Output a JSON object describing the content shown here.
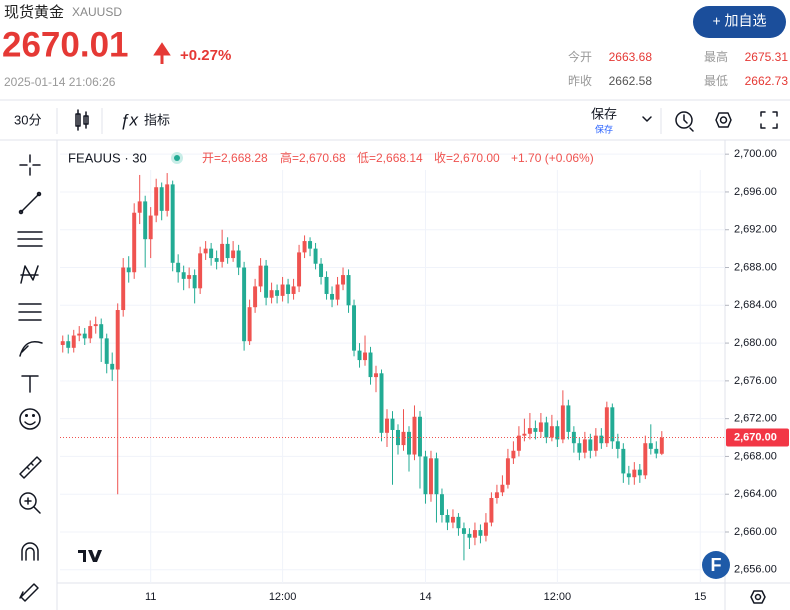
{
  "header": {
    "name": "现货黄金",
    "code": "XAUUSD",
    "price": "2670.01",
    "change": "+0.27%",
    "time": "2025-01-14 21:06:26",
    "button": "+ 加自选",
    "stats": [
      {
        "label": "今开",
        "value": "2663.68"
      },
      {
        "label": "最高",
        "value": "2675.31"
      },
      {
        "label": "昨收",
        "value": "2662.58"
      },
      {
        "label": "最低",
        "value": "2662.73"
      }
    ]
  },
  "toolbar": {
    "interval": "30分",
    "indicators": "指标",
    "save": "保存",
    "save_sub": "保存"
  },
  "legend": {
    "symbol": "FEAUUS · 30",
    "items": [
      "开=2,668.28",
      "高=2,670.68",
      "低=2,668.14",
      "收=2,670.00"
    ],
    "change": "+1.70 (+0.06%)"
  },
  "chart_data": {
    "type": "candlestick",
    "up_color": "#ef5350",
    "down_color": "#22ab94",
    "grid": true,
    "xlim": [
      -0.5,
      120.5
    ],
    "xticks": [
      {
        "value": 16,
        "label": "11"
      },
      {
        "value": 40,
        "label": "12:00"
      },
      {
        "value": 66,
        "label": "14"
      },
      {
        "value": 90,
        "label": "12:00"
      },
      {
        "value": 116,
        "label": "15"
      }
    ],
    "ylim": [
      2654.6,
      2701.5
    ],
    "yticks": [
      {
        "value": 2656,
        "label": "2,656.00"
      },
      {
        "value": 2660,
        "label": "2,660.00"
      },
      {
        "value": 2664,
        "label": "2,664.00"
      },
      {
        "value": 2668,
        "label": "2,668.00"
      },
      {
        "value": 2672,
        "label": "2,672.00"
      },
      {
        "value": 2676,
        "label": "2,676.00"
      },
      {
        "value": 2680,
        "label": "2,680.00"
      },
      {
        "value": 2684,
        "label": "2,684.00"
      },
      {
        "value": 2688,
        "label": "2,688.00"
      },
      {
        "value": 2692,
        "label": "2,692.00"
      },
      {
        "value": 2696,
        "label": "2,696.00"
      },
      {
        "value": 2700,
        "label": "2,700.00"
      }
    ],
    "price_line": {
      "value": 2670,
      "label": "2,670.00"
    },
    "open": [
      2679.8,
      2680.2,
      2679.5,
      2680.8,
      2681.0,
      2680.5,
      2681.8,
      2682.0,
      2680.5,
      2677.8,
      2677.2,
      2683.5,
      2688.0,
      2687.5,
      2693.8,
      2695.0,
      2691.0,
      2693.5,
      2696.5,
      2694.0,
      2696.8,
      2688.5,
      2687.5,
      2686.8,
      2687.2,
      2685.8,
      2689.5,
      2690.0,
      2689.0,
      2688.6,
      2690.5,
      2689.0,
      2689.8,
      2688.0,
      2680.2,
      2683.8,
      2686.0,
      2688.2,
      2684.8,
      2685.6,
      2685.0,
      2686.2,
      2685.2,
      2686.0,
      2689.6,
      2690.8,
      2690.0,
      2688.4,
      2687.0,
      2685.2,
      2684.6,
      2686.2,
      2687.2,
      2684.0,
      2679.2,
      2678.2,
      2679.0,
      2676.4,
      2676.8,
      2670.5,
      2672.0,
      2670.8,
      2669.2,
      2670.6,
      2668.2,
      2672.2,
      2668.0,
      2664.0,
      2667.8,
      2664.0,
      2661.8,
      2661.0,
      2661.6,
      2660.4,
      2659.8,
      2659.4,
      2660.2,
      2659.6,
      2661.0,
      2663.6,
      2664.2,
      2665.0,
      2667.8,
      2668.6,
      2670.2,
      2670.4,
      2671.0,
      2670.6,
      2671.6,
      2670.0,
      2671.2,
      2669.8,
      2673.4,
      2670.6,
      2669.4,
      2668.4,
      2669.8,
      2668.6,
      2670.2,
      2669.4,
      2673.2,
      2669.6,
      2668.8,
      2666.2,
      2665.8,
      2666.6,
      2666.0,
      2669.4,
      2668.8,
      2668.28
    ],
    "high": [
      2680.8,
      2680.9,
      2681.4,
      2681.8,
      2681.6,
      2682.4,
      2682.8,
      2682.6,
      2681.0,
      2679.0,
      2684.2,
      2689.0,
      2689.2,
      2694.8,
      2697.8,
      2695.6,
      2694.4,
      2697.4,
      2697.0,
      2698.0,
      2697.2,
      2689.4,
      2688.2,
      2688.0,
      2687.8,
      2690.2,
      2690.8,
      2690.6,
      2689.8,
      2692.0,
      2691.2,
      2690.8,
      2690.4,
      2688.6,
      2684.6,
      2686.8,
      2689.0,
      2688.8,
      2686.4,
      2686.2,
      2687.0,
      2686.8,
      2686.8,
      2690.4,
      2691.4,
      2691.2,
      2690.6,
      2689.0,
      2687.6,
      2686.0,
      2687.0,
      2688.0,
      2687.8,
      2684.6,
      2680.0,
      2680.8,
      2679.6,
      2677.6,
      2677.2,
      2673.0,
      2672.8,
      2671.4,
      2673.0,
      2671.2,
      2673.4,
      2672.8,
      2668.6,
      2668.6,
      2668.4,
      2664.6,
      2662.4,
      2662.4,
      2662.0,
      2661.0,
      2660.4,
      2661.0,
      2660.8,
      2662.0,
      2664.2,
      2665.0,
      2666.0,
      2668.8,
      2669.6,
      2671.2,
      2672.0,
      2672.6,
      2671.8,
      2672.6,
      2672.2,
      2672.4,
      2671.8,
      2675.0,
      2674.0,
      2671.2,
      2670.0,
      2670.6,
      2670.4,
      2671.0,
      2671.0,
      2673.8,
      2673.6,
      2670.4,
      2669.4,
      2667.0,
      2667.4,
      2667.2,
      2670.2,
      2671.4,
      2669.6,
      2670.68
    ],
    "low": [
      2679.0,
      2678.9,
      2679.0,
      2680.2,
      2679.8,
      2680.0,
      2681.0,
      2678.0,
      2676.8,
      2676.0,
      2664.0,
      2682.8,
      2686.4,
      2686.8,
      2692.6,
      2688.0,
      2689.0,
      2692.8,
      2693.0,
      2693.4,
      2687.6,
      2686.4,
      2685.6,
      2685.8,
      2684.2,
      2685.2,
      2688.8,
      2688.2,
      2687.8,
      2688.0,
      2688.4,
      2688.6,
      2687.2,
      2679.2,
      2679.8,
      2683.2,
      2685.4,
      2684.0,
      2684.2,
      2684.2,
      2684.4,
      2684.2,
      2684.6,
      2685.4,
      2689.0,
      2689.2,
      2687.8,
      2686.2,
      2684.6,
      2683.8,
      2684.0,
      2685.6,
      2683.2,
      2678.6,
      2677.4,
      2677.6,
      2675.6,
      2674.8,
      2669.6,
      2669.0,
      2665.0,
      2668.2,
      2668.6,
      2666.4,
      2667.6,
      2664.6,
      2663.0,
      2663.2,
      2661.0,
      2661.0,
      2660.2,
      2660.4,
      2659.6,
      2657.0,
      2658.2,
      2658.6,
      2658.8,
      2659.0,
      2660.6,
      2663.0,
      2663.8,
      2664.6,
      2667.2,
      2668.0,
      2669.6,
      2669.8,
      2669.8,
      2670.0,
      2669.4,
      2669.6,
      2669.0,
      2669.4,
      2669.8,
      2668.4,
      2667.6,
      2667.8,
      2667.8,
      2668.0,
      2668.8,
      2669.0,
      2668.8,
      2667.8,
      2665.2,
      2665.0,
      2665.0,
      2665.2,
      2665.6,
      2668.2,
      2667.8,
      2668.14
    ],
    "close": [
      2680.2,
      2679.5,
      2680.8,
      2681.0,
      2680.5,
      2681.8,
      2682.0,
      2680.5,
      2677.8,
      2677.2,
      2683.5,
      2688.0,
      2687.5,
      2693.8,
      2695.0,
      2691.0,
      2693.5,
      2696.5,
      2694.0,
      2696.8,
      2688.5,
      2687.5,
      2686.8,
      2687.2,
      2685.8,
      2689.5,
      2690.0,
      2689.0,
      2688.6,
      2690.5,
      2689.0,
      2689.8,
      2688.0,
      2680.2,
      2683.8,
      2686.0,
      2688.2,
      2684.8,
      2685.6,
      2685.0,
      2686.2,
      2685.2,
      2686.0,
      2689.6,
      2690.8,
      2690.0,
      2688.4,
      2687.0,
      2685.2,
      2684.6,
      2686.2,
      2687.2,
      2684.0,
      2679.2,
      2678.2,
      2679.0,
      2676.4,
      2676.8,
      2670.5,
      2672.0,
      2670.8,
      2669.2,
      2670.6,
      2668.2,
      2672.2,
      2668.0,
      2664.0,
      2667.8,
      2664.0,
      2661.8,
      2661.0,
      2661.6,
      2660.4,
      2659.8,
      2659.4,
      2660.2,
      2659.6,
      2661.0,
      2663.6,
      2664.2,
      2665.0,
      2667.8,
      2668.6,
      2670.2,
      2670.4,
      2671.0,
      2670.6,
      2671.6,
      2670.0,
      2671.2,
      2669.8,
      2673.4,
      2670.6,
      2669.4,
      2668.4,
      2669.8,
      2668.6,
      2670.2,
      2669.4,
      2673.2,
      2669.6,
      2668.8,
      2666.2,
      2665.8,
      2666.6,
      2666.0,
      2669.4,
      2668.8,
      2668.3,
      2670.0
    ]
  }
}
